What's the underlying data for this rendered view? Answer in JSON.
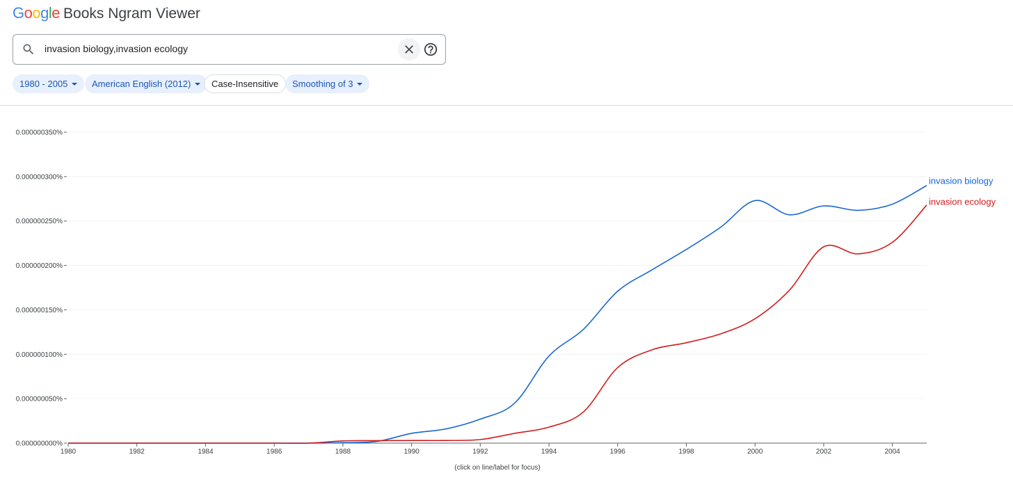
{
  "header": {
    "logo_letters": [
      {
        "ch": "G",
        "cls": "b"
      },
      {
        "ch": "o",
        "cls": "r"
      },
      {
        "ch": "o",
        "cls": "y"
      },
      {
        "ch": "g",
        "cls": "b"
      },
      {
        "ch": "l",
        "cls": "g"
      },
      {
        "ch": "e",
        "cls": "r"
      }
    ],
    "app_name": "Books Ngram Viewer"
  },
  "search": {
    "value": "invasion biology,invasion ecology",
    "search_icon": "search-icon",
    "clear_icon": "close-icon",
    "help_icon": "help-icon"
  },
  "filters": {
    "year_range": "1980 - 2005",
    "corpus": "American English (2012)",
    "case": "Case-Insensitive",
    "smoothing": "Smoothing of 3"
  },
  "colors": {
    "biology": "#1967d2",
    "ecology": "#d01c1c",
    "grid": "#f1f3f4",
    "axis": "#5f6368",
    "chip_bg": "#e8f0fe",
    "chip_text": "#1a55b4"
  },
  "chart_data": {
    "type": "line",
    "title": "",
    "xlabel": "",
    "ylabel": "",
    "xlim": [
      1980,
      2005
    ],
    "ylim": [
      0,
      3.5e-07
    ],
    "y_ticks": [
      {
        "value": 3.5e-07,
        "label": "0.000000350%"
      },
      {
        "value": 3e-07,
        "label": "0.000000300%"
      },
      {
        "value": 2.5e-07,
        "label": "0.000000250%"
      },
      {
        "value": 2e-07,
        "label": "0.000000200%"
      },
      {
        "value": 1.5e-07,
        "label": "0.000000150%"
      },
      {
        "value": 1e-07,
        "label": "0.000000100%"
      },
      {
        "value": 5e-08,
        "label": "0.000000050%"
      },
      {
        "value": 0.0,
        "label": "0.000000000%"
      }
    ],
    "x_ticks": [
      1980,
      1982,
      1984,
      1986,
      1988,
      1990,
      1992,
      1994,
      1996,
      1998,
      2000,
      2002,
      2004
    ],
    "grid": true,
    "legend": "inline labels at right end of lines",
    "series": [
      {
        "name": "invasion biology",
        "color_key": "biology",
        "points": [
          [
            1980,
            0.0
          ],
          [
            1981,
            0.0
          ],
          [
            1982,
            0.0
          ],
          [
            1983,
            0.0
          ],
          [
            1984,
            0.0
          ],
          [
            1985,
            0.0
          ],
          [
            1986,
            0.0
          ],
          [
            1987,
            0.0
          ],
          [
            1988,
            5e-10
          ],
          [
            1989,
            2e-09
          ],
          [
            1990,
            1.1e-08
          ],
          [
            1991,
            1.6e-08
          ],
          [
            1992,
            2.7e-08
          ],
          [
            1993,
            4.5e-08
          ],
          [
            1994,
            9.8e-08
          ],
          [
            1995,
            1.28e-07
          ],
          [
            1996,
            1.71e-07
          ],
          [
            1997,
            1.95e-07
          ],
          [
            1998,
            2.18e-07
          ],
          [
            1999,
            2.43e-07
          ],
          [
            2000,
            2.73e-07
          ],
          [
            2001,
            2.57e-07
          ],
          [
            2002,
            2.67e-07
          ],
          [
            2003,
            2.62e-07
          ],
          [
            2004,
            2.69e-07
          ],
          [
            2005,
            2.9e-07
          ]
        ]
      },
      {
        "name": "invasion ecology",
        "color_key": "ecology",
        "points": [
          [
            1980,
            0.0
          ],
          [
            1981,
            0.0
          ],
          [
            1982,
            0.0
          ],
          [
            1983,
            0.0
          ],
          [
            1984,
            0.0
          ],
          [
            1985,
            0.0
          ],
          [
            1986,
            0.0
          ],
          [
            1987,
            0.0
          ],
          [
            1988,
            2.5e-09
          ],
          [
            1989,
            2.8e-09
          ],
          [
            1990,
            3e-09
          ],
          [
            1991,
            3e-09
          ],
          [
            1992,
            4e-09
          ],
          [
            1993,
            1.1e-08
          ],
          [
            1994,
            1.8e-08
          ],
          [
            1995,
            3.5e-08
          ],
          [
            1996,
            8.5e-08
          ],
          [
            1997,
            1.05e-07
          ],
          [
            1998,
            1.13e-07
          ],
          [
            1999,
            1.23e-07
          ],
          [
            2000,
            1.4e-07
          ],
          [
            2001,
            1.72e-07
          ],
          [
            2002,
            2.21e-07
          ],
          [
            2003,
            2.13e-07
          ],
          [
            2004,
            2.26e-07
          ],
          [
            2005,
            2.68e-07
          ]
        ]
      }
    ]
  },
  "footnote": "(click on line/label for focus)"
}
